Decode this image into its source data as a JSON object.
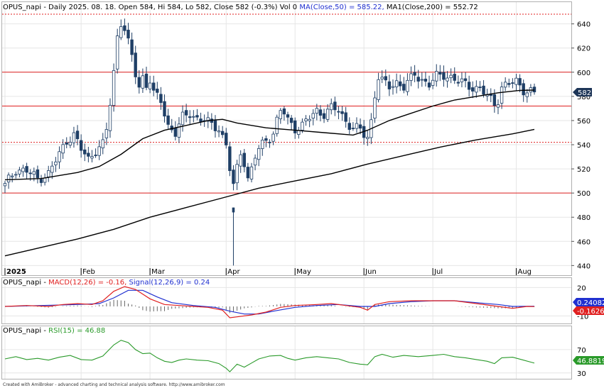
{
  "header": {
    "ticker": "OPUS_napi",
    "info": " - Daily 2025. 08. 18. Open 584, Hi 584, Lo 582, Close 582 (-0.3%) Vol 0 ",
    "ma50_text": "MA(Close,50) = 585.22,",
    "ma200_text": " MA1(Close,200) = 552.72"
  },
  "macd_header": {
    "prefix": "OPUS_napi - ",
    "macd_text": "MACD(12,26) = -0.16,",
    "signal_text": " Signal(12,26,9) = 0.24"
  },
  "rsi_header": {
    "prefix": "OPUS_napi - ",
    "rsi_text": "RSI(15) = 46.88"
  },
  "last_price_label": "582",
  "macd_signal_label": "0.24082",
  "macd_label": "-0.16269",
  "rsi_value_label": "46.8819",
  "footer": "Created with AmiBroker - advanced charting and technical analysis software. http://www.amibroker.com",
  "x_labels": [
    {
      "text": "2025",
      "day": 0,
      "bold": true
    },
    {
      "text": "Feb",
      "day": 21
    },
    {
      "text": "Mar",
      "day": 40
    },
    {
      "text": "Apr",
      "day": 61
    },
    {
      "text": "May",
      "day": 80
    },
    {
      "text": "Jun",
      "day": 99
    },
    {
      "text": "Jul",
      "day": 118
    },
    {
      "text": "Aug",
      "day": 141
    }
  ],
  "colors": {
    "background": "#ffffff",
    "grid": "#e6e6e6",
    "candle": "#1f3f66",
    "ma_line": "#000000",
    "hline": "#e02020",
    "macd": "#e02020",
    "signal": "#2030d0",
    "rsi": "#2a9a2a",
    "label_dark": "#1d3557",
    "label_red": "#e02020",
    "label_green": "#2a9a2a"
  },
  "chart_data": [
    {
      "type": "candlestick",
      "title": "OPUS_napi - Daily",
      "y_ticks": [
        440,
        460,
        480,
        500,
        520,
        540,
        560,
        580,
        600,
        620,
        640
      ],
      "ylim": [
        432,
        658
      ],
      "horizontal_lines": [
        {
          "value": 648,
          "style": "dotted"
        },
        {
          "value": 600,
          "style": "solid"
        },
        {
          "value": 572,
          "style": "solid"
        },
        {
          "value": 542,
          "style": "dotted"
        },
        {
          "value": 500,
          "style": "solid"
        }
      ],
      "anchors": [
        [
          0,
          506
        ],
        [
          3,
          520
        ],
        [
          6,
          518
        ],
        [
          9,
          512
        ],
        [
          12,
          516
        ],
        [
          15,
          532
        ],
        [
          17,
          544
        ],
        [
          19,
          548
        ],
        [
          21,
          536
        ],
        [
          23,
          528
        ],
        [
          25,
          536
        ],
        [
          27,
          540
        ],
        [
          28,
          552
        ],
        [
          29,
          574
        ],
        [
          30,
          600
        ],
        [
          31,
          630
        ],
        [
          32,
          642
        ],
        [
          33,
          636
        ],
        [
          34,
          624
        ],
        [
          35,
          612
        ],
        [
          36,
          598
        ],
        [
          37,
          588
        ],
        [
          38,
          596
        ],
        [
          39,
          590
        ],
        [
          40,
          594
        ],
        [
          41,
          582
        ],
        [
          43,
          576
        ],
        [
          45,
          556
        ],
        [
          47,
          550
        ],
        [
          49,
          562
        ],
        [
          51,
          566
        ],
        [
          53,
          562
        ],
        [
          55,
          560
        ],
        [
          57,
          556
        ],
        [
          59,
          554
        ],
        [
          61,
          540
        ],
        [
          62,
          520
        ],
        [
          63,
          505
        ],
        [
          64,
          520
        ],
        [
          65,
          534
        ],
        [
          66,
          526
        ],
        [
          67,
          512
        ],
        [
          68,
          520
        ],
        [
          69,
          530
        ],
        [
          70,
          536
        ],
        [
          72,
          544
        ],
        [
          74,
          550
        ],
        [
          75,
          560
        ],
        [
          76,
          568
        ],
        [
          77,
          566
        ],
        [
          78,
          560
        ],
        [
          80,
          554
        ],
        [
          82,
          556
        ],
        [
          84,
          562
        ],
        [
          86,
          568
        ],
        [
          88,
          566
        ],
        [
          90,
          570
        ],
        [
          92,
          568
        ],
        [
          94,
          560
        ],
        [
          96,
          554
        ],
        [
          98,
          552
        ],
        [
          99,
          548
        ],
        [
          100,
          546
        ],
        [
          101,
          560
        ],
        [
          102,
          582
        ],
        [
          103,
          596
        ],
        [
          104,
          592
        ],
        [
          106,
          588
        ],
        [
          108,
          592
        ],
        [
          110,
          588
        ],
        [
          112,
          594
        ],
        [
          113,
          598
        ],
        [
          115,
          594
        ],
        [
          117,
          590
        ],
        [
          119,
          596
        ],
        [
          121,
          598
        ],
        [
          123,
          596
        ],
        [
          125,
          592
        ],
        [
          127,
          590
        ],
        [
          129,
          588
        ],
        [
          131,
          586
        ],
        [
          133,
          580
        ],
        [
          135,
          574
        ],
        [
          136,
          578
        ],
        [
          137,
          588
        ],
        [
          139,
          590
        ],
        [
          141,
          592
        ],
        [
          143,
          586
        ],
        [
          145,
          584
        ],
        [
          146,
          582
        ]
      ],
      "ohlc_note": "close path per trading day; open/high/low varied around it",
      "series": [
        {
          "name": "MA(Close,50)",
          "last": 585.22,
          "points": [
            [
              0,
              511
            ],
            [
              10,
              512
            ],
            [
              20,
              517
            ],
            [
              26,
              522
            ],
            [
              32,
              532
            ],
            [
              38,
              545
            ],
            [
              44,
              552
            ],
            [
              50,
              556
            ],
            [
              56,
              560
            ],
            [
              60,
              561
            ],
            [
              64,
              558
            ],
            [
              68,
              556
            ],
            [
              72,
              554
            ],
            [
              80,
              552
            ],
            [
              88,
              550
            ],
            [
              96,
              548
            ],
            [
              100,
              552
            ],
            [
              106,
              560
            ],
            [
              112,
              566
            ],
            [
              118,
              572
            ],
            [
              124,
              577
            ],
            [
              130,
              580
            ],
            [
              136,
              583
            ],
            [
              142,
              585
            ],
            [
              146,
              585.2
            ]
          ]
        },
        {
          "name": "MA1(Close,200)",
          "last": 552.72,
          "points": [
            [
              0,
              448
            ],
            [
              10,
              455
            ],
            [
              20,
              462
            ],
            [
              30,
              470
            ],
            [
              40,
              480
            ],
            [
              50,
              488
            ],
            [
              60,
              496
            ],
            [
              70,
              504
            ],
            [
              80,
              510
            ],
            [
              90,
              516
            ],
            [
              100,
              524
            ],
            [
              110,
              531
            ],
            [
              120,
              538
            ],
            [
              130,
              544
            ],
            [
              140,
              549
            ],
            [
              146,
              552.7
            ]
          ]
        }
      ],
      "spike": {
        "day": 63,
        "low": 440,
        "high": 488
      }
    },
    {
      "type": "line",
      "title": "MACD",
      "y_ticks": [
        -10,
        20
      ],
      "ylim": [
        -18,
        30
      ],
      "series": [
        {
          "name": "MACD(12,26)",
          "last": -0.16,
          "points": [
            [
              0,
              0
            ],
            [
              6,
              1
            ],
            [
              12,
              0
            ],
            [
              16,
              2
            ],
            [
              20,
              3
            ],
            [
              24,
              2
            ],
            [
              27,
              6
            ],
            [
              30,
              16
            ],
            [
              33,
              21
            ],
            [
              36,
              18
            ],
            [
              40,
              8
            ],
            [
              44,
              2
            ],
            [
              48,
              1
            ],
            [
              52,
              0
            ],
            [
              56,
              -1
            ],
            [
              60,
              -4
            ],
            [
              62,
              -12
            ],
            [
              64,
              -11
            ],
            [
              68,
              -9
            ],
            [
              72,
              -6
            ],
            [
              76,
              -1
            ],
            [
              80,
              1
            ],
            [
              86,
              2
            ],
            [
              90,
              3
            ],
            [
              94,
              1
            ],
            [
              98,
              -1
            ],
            [
              100,
              -4
            ],
            [
              102,
              2
            ],
            [
              106,
              5
            ],
            [
              112,
              6
            ],
            [
              118,
              6
            ],
            [
              124,
              6
            ],
            [
              130,
              3
            ],
            [
              136,
              0
            ],
            [
              140,
              -2
            ],
            [
              144,
              0
            ],
            [
              146,
              -0.16
            ]
          ]
        },
        {
          "name": "Signal(12,26,9)",
          "last": 0.24,
          "points": [
            [
              0,
              0
            ],
            [
              10,
              1
            ],
            [
              20,
              2
            ],
            [
              26,
              3
            ],
            [
              30,
              9
            ],
            [
              34,
              17
            ],
            [
              38,
              17
            ],
            [
              42,
              10
            ],
            [
              46,
              4
            ],
            [
              52,
              1
            ],
            [
              58,
              -1
            ],
            [
              62,
              -5
            ],
            [
              66,
              -8
            ],
            [
              70,
              -8
            ],
            [
              74,
              -5
            ],
            [
              80,
              -1
            ],
            [
              86,
              1
            ],
            [
              92,
              2
            ],
            [
              98,
              0
            ],
            [
              102,
              0
            ],
            [
              106,
              3
            ],
            [
              112,
              5
            ],
            [
              118,
              6
            ],
            [
              124,
              6
            ],
            [
              130,
              4
            ],
            [
              136,
              2
            ],
            [
              140,
              0
            ],
            [
              146,
              0.24
            ]
          ]
        }
      ]
    },
    {
      "type": "line",
      "title": "RSI",
      "y_ticks": [
        30,
        70
      ],
      "ylim": [
        20,
        110
      ],
      "series": [
        {
          "name": "RSI(15)",
          "last": 46.88,
          "points": [
            [
              0,
              54
            ],
            [
              3,
              58
            ],
            [
              6,
              53
            ],
            [
              9,
              55
            ],
            [
              12,
              52
            ],
            [
              15,
              57
            ],
            [
              18,
              60
            ],
            [
              21,
              53
            ],
            [
              24,
              52
            ],
            [
              27,
              59
            ],
            [
              30,
              78
            ],
            [
              32,
              86
            ],
            [
              34,
              82
            ],
            [
              36,
              70
            ],
            [
              38,
              63
            ],
            [
              40,
              64
            ],
            [
              42,
              56
            ],
            [
              44,
              50
            ],
            [
              46,
              48
            ],
            [
              48,
              52
            ],
            [
              50,
              54
            ],
            [
              53,
              52
            ],
            [
              56,
              51
            ],
            [
              59,
              46
            ],
            [
              61,
              38
            ],
            [
              62,
              32
            ],
            [
              64,
              45
            ],
            [
              66,
              40
            ],
            [
              68,
              47
            ],
            [
              70,
              54
            ],
            [
              73,
              59
            ],
            [
              76,
              60
            ],
            [
              78,
              55
            ],
            [
              80,
              52
            ],
            [
              83,
              56
            ],
            [
              86,
              58
            ],
            [
              89,
              56
            ],
            [
              92,
              54
            ],
            [
              95,
              48
            ],
            [
              98,
              45
            ],
            [
              100,
              44
            ],
            [
              102,
              58
            ],
            [
              104,
              62
            ],
            [
              107,
              57
            ],
            [
              110,
              60
            ],
            [
              114,
              58
            ],
            [
              118,
              60
            ],
            [
              121,
              62
            ],
            [
              124,
              58
            ],
            [
              127,
              56
            ],
            [
              130,
              53
            ],
            [
              133,
              50
            ],
            [
              135,
              46
            ],
            [
              137,
              56
            ],
            [
              140,
              57
            ],
            [
              143,
              52
            ],
            [
              146,
              46.88
            ]
          ]
        }
      ]
    }
  ]
}
